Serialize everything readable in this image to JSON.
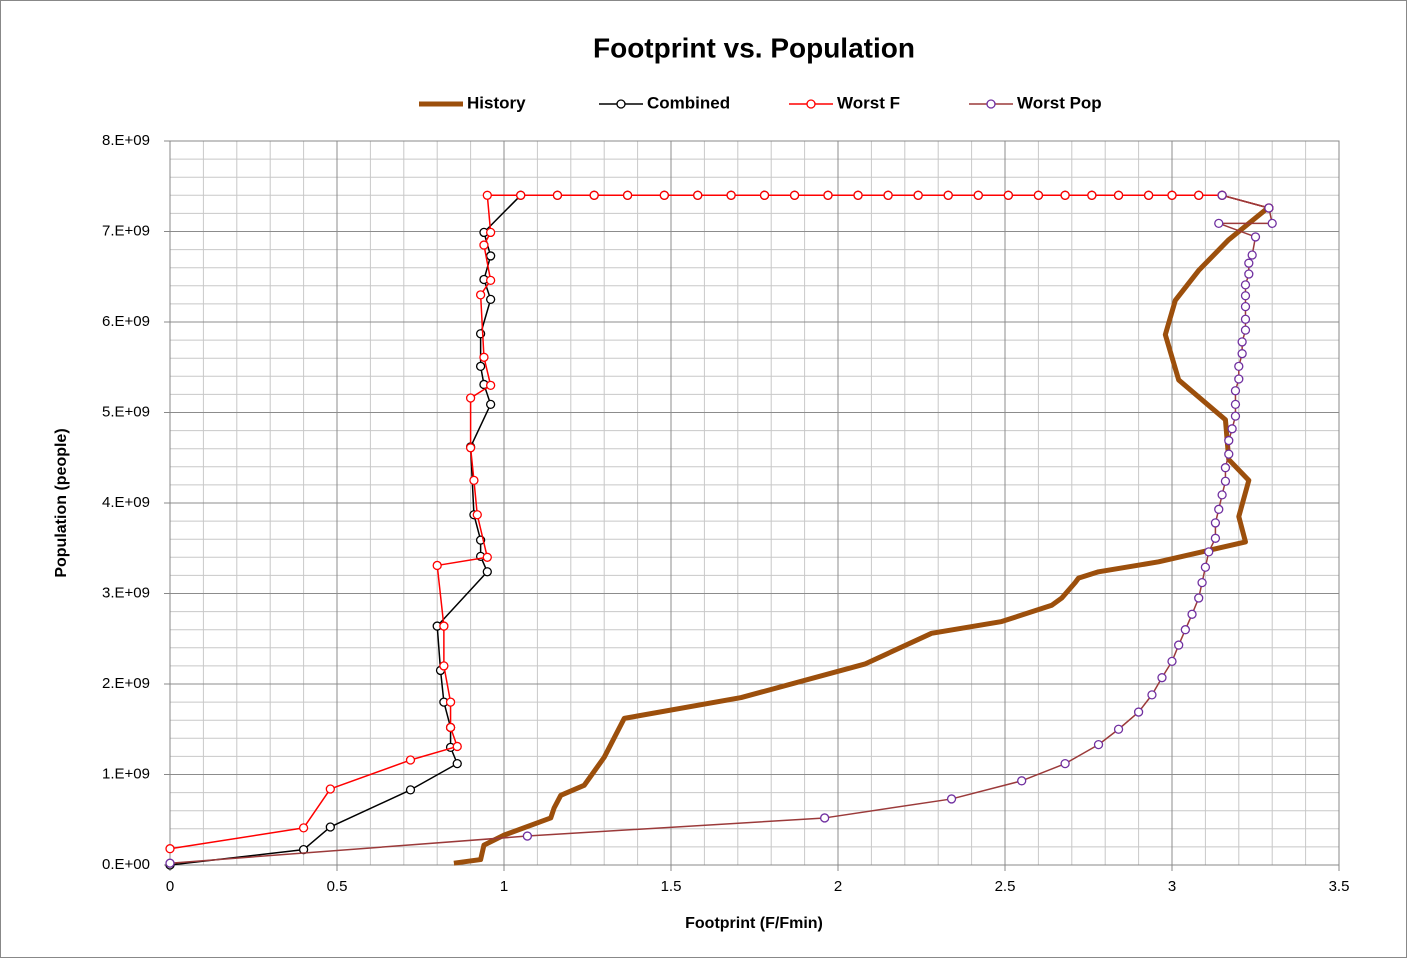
{
  "chart_data": {
    "type": "line",
    "title": "Footprint vs. Population",
    "x_label": "Footprint (F/Fmin)",
    "y_label": "Population (people)",
    "xlim": [
      0,
      3.5
    ],
    "xticks": [
      0,
      0.5,
      1,
      1.5,
      2,
      2.5,
      3,
      3.5
    ],
    "ylim": [
      0,
      8000000000.0
    ],
    "yticks": [
      {
        "value": 0,
        "label": "0.E+00"
      },
      {
        "value": 1000000000.0,
        "label": "1.E+09"
      },
      {
        "value": 2000000000.0,
        "label": "2.E+09"
      },
      {
        "value": 3000000000.0,
        "label": "3.E+09"
      },
      {
        "value": 4000000000.0,
        "label": "4.E+09"
      },
      {
        "value": 5000000000.0,
        "label": "5.E+09"
      },
      {
        "value": 6000000000.0,
        "label": "6.E+09"
      },
      {
        "value": 7000000000.0,
        "label": "7.E+09"
      },
      {
        "value": 8000000000.0,
        "label": "8.E+09"
      }
    ],
    "grid": true,
    "minor_grid": {
      "x": 0.1,
      "y": 200000000.0
    },
    "legend": "top",
    "series": [
      {
        "name": "History",
        "color": "#9c4f0c",
        "line_width": 5,
        "markers": false,
        "x": [
          0.85,
          0.93,
          0.94,
          1.0,
          1.14,
          1.15,
          1.17,
          1.24,
          1.3,
          1.36,
          1.71,
          2.08,
          2.28,
          2.49,
          2.64,
          2.67,
          2.71,
          2.72,
          2.78,
          2.96,
          3.22,
          3.2,
          3.23,
          3.17,
          3.16,
          3.02,
          2.98,
          3.01,
          3.08,
          3.17,
          3.28
        ],
        "values": [
          20000000.0,
          60000000.0,
          220000000.0,
          330000000.0,
          520000000.0,
          630000000.0,
          770000000.0,
          880000000.0,
          1190000000.0,
          1620000000.0,
          1850000000.0,
          2220000000.0,
          2560000000.0,
          2690000000.0,
          2870000000.0,
          2950000000.0,
          3120000000.0,
          3170000000.0,
          3240000000.0,
          3350000000.0,
          3570000000.0,
          3850000000.0,
          4250000000.0,
          4480000000.0,
          4920000000.0,
          5360000000.0,
          5860000000.0,
          6240000000.0,
          6570000000.0,
          6910000000.0,
          7240000000.0
        ]
      },
      {
        "name": "Combined",
        "color": "#000000",
        "line_width": 1.5,
        "markers": true,
        "x": [
          0,
          0.4,
          0.48,
          0.72,
          0.86,
          0.84,
          0.84,
          0.82,
          0.81,
          0.8,
          0.95,
          0.93,
          0.93,
          0.91,
          0.9,
          0.96,
          0.94,
          0.93,
          0.93,
          0.96,
          0.94,
          0.96,
          0.94,
          1.05,
          1.16,
          1.27,
          1.37,
          1.48,
          1.58,
          1.68,
          1.78,
          1.87,
          1.97,
          2.06,
          2.15,
          2.24,
          2.33,
          2.42,
          2.51,
          2.6,
          2.68,
          2.76,
          2.84,
          2.93,
          3.0,
          3.08,
          3.15,
          3.29
        ],
        "values": [
          0,
          170000000.0,
          420000000.0,
          830000000.0,
          1120000000.0,
          1300000000.0,
          1520000000.0,
          1800000000.0,
          2150000000.0,
          2640000000.0,
          3240000000.0,
          3410000000.0,
          3590000000.0,
          3870000000.0,
          4620000000.0,
          5090000000.0,
          5310000000.0,
          5510000000.0,
          5870000000.0,
          6250000000.0,
          6470000000.0,
          6730000000.0,
          6990000000.0,
          7400000000.0,
          7400000000.0,
          7400000000.0,
          7400000000.0,
          7400000000.0,
          7400000000.0,
          7400000000.0,
          7400000000.0,
          7400000000.0,
          7400000000.0,
          7400000000.0,
          7400000000.0,
          7400000000.0,
          7400000000.0,
          7400000000.0,
          7400000000.0,
          7400000000.0,
          7400000000.0,
          7400000000.0,
          7400000000.0,
          7400000000.0,
          7400000000.0,
          7400000000.0,
          7400000000.0,
          7260000000.0
        ]
      },
      {
        "name": "Worst F",
        "color": "#ff0000",
        "line_width": 1.5,
        "markers": true,
        "x": [
          0,
          0.4,
          0.48,
          0.72,
          0.86,
          0.84,
          0.84,
          0.82,
          0.82,
          0.8,
          0.95,
          0.92,
          0.91,
          0.9,
          0.9,
          0.96,
          0.94,
          0.93,
          0.96,
          0.94,
          0.96,
          0.95,
          1.05,
          1.16,
          1.27,
          1.37,
          1.48,
          1.58,
          1.68,
          1.78,
          1.87,
          1.97,
          2.06,
          2.15,
          2.24,
          2.33,
          2.42,
          2.51,
          2.6,
          2.68,
          2.76,
          2.84,
          2.93,
          3.0,
          3.08,
          3.15,
          3.29
        ],
        "values": [
          180000000.0,
          410000000.0,
          840000000.0,
          1160000000.0,
          1310000000.0,
          1520000000.0,
          1800000000.0,
          2200000000.0,
          2640000000.0,
          3310000000.0,
          3400000000.0,
          3870000000.0,
          4250000000.0,
          4610000000.0,
          5160000000.0,
          5300000000.0,
          5610000000.0,
          6300000000.0,
          6460000000.0,
          6850000000.0,
          6990000000.0,
          7400000000.0,
          7400000000.0,
          7400000000.0,
          7400000000.0,
          7400000000.0,
          7400000000.0,
          7400000000.0,
          7400000000.0,
          7400000000.0,
          7400000000.0,
          7400000000.0,
          7400000000.0,
          7400000000.0,
          7400000000.0,
          7400000000.0,
          7400000000.0,
          7400000000.0,
          7400000000.0,
          7400000000.0,
          7400000000.0,
          7400000000.0,
          7400000000.0,
          7400000000.0,
          7400000000.0,
          7400000000.0,
          7260000000.0
        ]
      },
      {
        "name": "Worst Pop",
        "color": "#9b3a3a",
        "marker_color": "#7030a0",
        "line_width": 1.5,
        "markers": true,
        "x": [
          0,
          1.07,
          1.96,
          2.34,
          2.55,
          2.68,
          2.78,
          2.84,
          2.9,
          2.94,
          2.97,
          3.0,
          3.02,
          3.04,
          3.06,
          3.08,
          3.09,
          3.1,
          3.11,
          3.13,
          3.13,
          3.14,
          3.15,
          3.16,
          3.16,
          3.17,
          3.17,
          3.18,
          3.19,
          3.19,
          3.19,
          3.2,
          3.2,
          3.21,
          3.21,
          3.22,
          3.22,
          3.22,
          3.22,
          3.22,
          3.23,
          3.23,
          3.24,
          3.25,
          3.14,
          3.3,
          3.29,
          3.15
        ],
        "values": [
          20000000.0,
          320000000.0,
          520000000.0,
          730000000.0,
          930000000.0,
          1120000000.0,
          1330000000.0,
          1500000000.0,
          1690000000.0,
          1880000000.0,
          2070000000.0,
          2250000000.0,
          2430000000.0,
          2600000000.0,
          2770000000.0,
          2950000000.0,
          3120000000.0,
          3290000000.0,
          3460000000.0,
          3610000000.0,
          3780000000.0,
          3930000000.0,
          4090000000.0,
          4240000000.0,
          4390000000.0,
          4540000000.0,
          4690000000.0,
          4820000000.0,
          4960000000.0,
          5090000000.0,
          5240000000.0,
          5370000000.0,
          5510000000.0,
          5650000000.0,
          5780000000.0,
          5910000000.0,
          6030000000.0,
          6170000000.0,
          6290000000.0,
          6410000000.0,
          6530000000.0,
          6650000000.0,
          6740000000.0,
          6940000000.0,
          7090000000.0,
          7090000000.0,
          7260000000.0,
          7400000000.0
        ]
      }
    ]
  }
}
